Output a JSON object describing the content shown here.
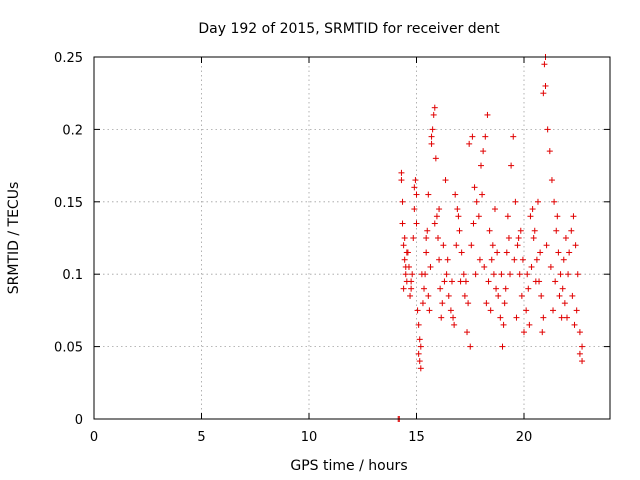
{
  "chart_data": {
    "type": "scatter",
    "title": "Day 192 of 2015, SRMTID for receiver dent",
    "xlabel": "GPS time / hours",
    "ylabel": "SRMTID / TECUs",
    "xlim": [
      0,
      24
    ],
    "ylim": [
      0,
      0.25
    ],
    "x_ticks": [
      0,
      5,
      10,
      15,
      20
    ],
    "x_tick_labels": [
      "0",
      "5",
      "10",
      "15",
      "20"
    ],
    "y_ticks": [
      0,
      0.05,
      0.1,
      0.15,
      0.2,
      0.25
    ],
    "y_tick_labels": [
      "0",
      "0.05",
      "0.1",
      "0.15",
      "0.2",
      "0.25"
    ],
    "grid": true,
    "marker": "+",
    "color": "#e00000",
    "zero_marks": [
      14.15,
      14.2
    ],
    "series": [
      {
        "name": "SRMTID",
        "points": [
          [
            14.3,
            0.17
          ],
          [
            14.3,
            0.165
          ],
          [
            14.35,
            0.135
          ],
          [
            14.4,
            0.12
          ],
          [
            14.45,
            0.11
          ],
          [
            14.5,
            0.105
          ],
          [
            14.4,
            0.09
          ],
          [
            14.5,
            0.1
          ],
          [
            14.55,
            0.095
          ],
          [
            14.6,
            0.115
          ],
          [
            14.35,
            0.15
          ],
          [
            14.7,
            0.085
          ],
          [
            14.75,
            0.09
          ],
          [
            14.8,
            0.1
          ],
          [
            14.85,
            0.125
          ],
          [
            14.9,
            0.145
          ],
          [
            14.9,
            0.16
          ],
          [
            14.95,
            0.165
          ],
          [
            15.0,
            0.155
          ],
          [
            15.0,
            0.135
          ],
          [
            15.05,
            0.075
          ],
          [
            15.1,
            0.065
          ],
          [
            15.15,
            0.055
          ],
          [
            15.2,
            0.05
          ],
          [
            15.1,
            0.045
          ],
          [
            15.15,
            0.04
          ],
          [
            15.2,
            0.035
          ],
          [
            15.3,
            0.08
          ],
          [
            15.35,
            0.09
          ],
          [
            15.4,
            0.1
          ],
          [
            15.45,
            0.115
          ],
          [
            15.5,
            0.13
          ],
          [
            15.55,
            0.085
          ],
          [
            15.6,
            0.075
          ],
          [
            15.7,
            0.195
          ],
          [
            15.75,
            0.2
          ],
          [
            15.8,
            0.21
          ],
          [
            15.85,
            0.215
          ],
          [
            15.7,
            0.19
          ],
          [
            15.9,
            0.18
          ],
          [
            15.95,
            0.14
          ],
          [
            16.0,
            0.125
          ],
          [
            16.05,
            0.11
          ],
          [
            16.1,
            0.09
          ],
          [
            16.2,
            0.08
          ],
          [
            16.3,
            0.095
          ],
          [
            16.4,
            0.1
          ],
          [
            16.5,
            0.085
          ],
          [
            16.6,
            0.075
          ],
          [
            16.7,
            0.07
          ],
          [
            16.8,
            0.155
          ],
          [
            16.9,
            0.145
          ],
          [
            17.0,
            0.13
          ],
          [
            17.1,
            0.115
          ],
          [
            17.2,
            0.1
          ],
          [
            17.3,
            0.095
          ],
          [
            17.4,
            0.08
          ],
          [
            17.5,
            0.05
          ],
          [
            17.45,
            0.19
          ],
          [
            17.6,
            0.195
          ],
          [
            17.7,
            0.16
          ],
          [
            17.8,
            0.15
          ],
          [
            17.9,
            0.14
          ],
          [
            18.0,
            0.175
          ],
          [
            18.1,
            0.185
          ],
          [
            18.2,
            0.195
          ],
          [
            18.3,
            0.21
          ],
          [
            18.4,
            0.13
          ],
          [
            18.5,
            0.11
          ],
          [
            18.6,
            0.1
          ],
          [
            18.7,
            0.09
          ],
          [
            18.8,
            0.085
          ],
          [
            18.9,
            0.07
          ],
          [
            19.0,
            0.05
          ],
          [
            19.1,
            0.08
          ],
          [
            19.2,
            0.115
          ],
          [
            19.3,
            0.125
          ],
          [
            19.4,
            0.175
          ],
          [
            19.5,
            0.195
          ],
          [
            19.6,
            0.15
          ],
          [
            19.7,
            0.12
          ],
          [
            19.8,
            0.1
          ],
          [
            19.9,
            0.085
          ],
          [
            20.0,
            0.06
          ],
          [
            20.1,
            0.075
          ],
          [
            20.2,
            0.09
          ],
          [
            20.3,
            0.14
          ],
          [
            20.4,
            0.145
          ],
          [
            20.5,
            0.13
          ],
          [
            20.6,
            0.11
          ],
          [
            20.7,
            0.095
          ],
          [
            20.8,
            0.085
          ],
          [
            20.9,
            0.07
          ],
          [
            20.95,
            0.245
          ],
          [
            21.0,
            0.25
          ],
          [
            21.0,
            0.23
          ],
          [
            20.9,
            0.225
          ],
          [
            21.1,
            0.2
          ],
          [
            21.2,
            0.185
          ],
          [
            21.3,
            0.165
          ],
          [
            21.4,
            0.15
          ],
          [
            21.5,
            0.13
          ],
          [
            21.6,
            0.115
          ],
          [
            21.7,
            0.1
          ],
          [
            21.8,
            0.09
          ],
          [
            21.9,
            0.08
          ],
          [
            22.0,
            0.07
          ],
          [
            22.1,
            0.115
          ],
          [
            22.2,
            0.13
          ],
          [
            22.3,
            0.14
          ],
          [
            22.4,
            0.12
          ],
          [
            22.5,
            0.1
          ],
          [
            22.6,
            0.06
          ],
          [
            22.7,
            0.05
          ],
          [
            22.6,
            0.045
          ],
          [
            22.7,
            0.04
          ],
          [
            14.45,
            0.125
          ],
          [
            14.55,
            0.115
          ],
          [
            14.65,
            0.105
          ],
          [
            14.75,
            0.095
          ],
          [
            15.25,
            0.1
          ],
          [
            15.45,
            0.125
          ],
          [
            15.65,
            0.105
          ],
          [
            15.85,
            0.135
          ],
          [
            16.05,
            0.145
          ],
          [
            16.25,
            0.12
          ],
          [
            16.45,
            0.11
          ],
          [
            16.65,
            0.095
          ],
          [
            16.85,
            0.12
          ],
          [
            17.05,
            0.095
          ],
          [
            17.25,
            0.085
          ],
          [
            17.55,
            0.12
          ],
          [
            17.75,
            0.1
          ],
          [
            17.95,
            0.11
          ],
          [
            18.15,
            0.105
          ],
          [
            18.35,
            0.095
          ],
          [
            18.55,
            0.12
          ],
          [
            18.75,
            0.115
          ],
          [
            18.95,
            0.1
          ],
          [
            19.15,
            0.09
          ],
          [
            19.35,
            0.1
          ],
          [
            19.55,
            0.11
          ],
          [
            19.75,
            0.125
          ],
          [
            19.95,
            0.11
          ],
          [
            20.15,
            0.1
          ],
          [
            20.35,
            0.105
          ],
          [
            20.55,
            0.095
          ],
          [
            20.75,
            0.115
          ],
          [
            21.05,
            0.12
          ],
          [
            21.25,
            0.105
          ],
          [
            21.45,
            0.095
          ],
          [
            21.65,
            0.085
          ],
          [
            21.85,
            0.11
          ],
          [
            22.05,
            0.1
          ],
          [
            22.25,
            0.085
          ],
          [
            22.45,
            0.075
          ],
          [
            16.15,
            0.07
          ],
          [
            16.75,
            0.065
          ],
          [
            17.35,
            0.06
          ],
          [
            18.25,
            0.08
          ],
          [
            18.45,
            0.075
          ],
          [
            19.05,
            0.065
          ],
          [
            19.65,
            0.07
          ],
          [
            20.25,
            0.065
          ],
          [
            20.85,
            0.06
          ],
          [
            21.35,
            0.075
          ],
          [
            21.75,
            0.07
          ],
          [
            22.35,
            0.065
          ],
          [
            15.55,
            0.155
          ],
          [
            16.35,
            0.165
          ],
          [
            16.95,
            0.14
          ],
          [
            17.65,
            0.135
          ],
          [
            18.05,
            0.155
          ],
          [
            18.65,
            0.145
          ],
          [
            19.25,
            0.14
          ],
          [
            19.85,
            0.13
          ],
          [
            20.45,
            0.125
          ],
          [
            20.65,
            0.15
          ],
          [
            21.55,
            0.14
          ],
          [
            21.95,
            0.125
          ]
        ]
      }
    ]
  }
}
